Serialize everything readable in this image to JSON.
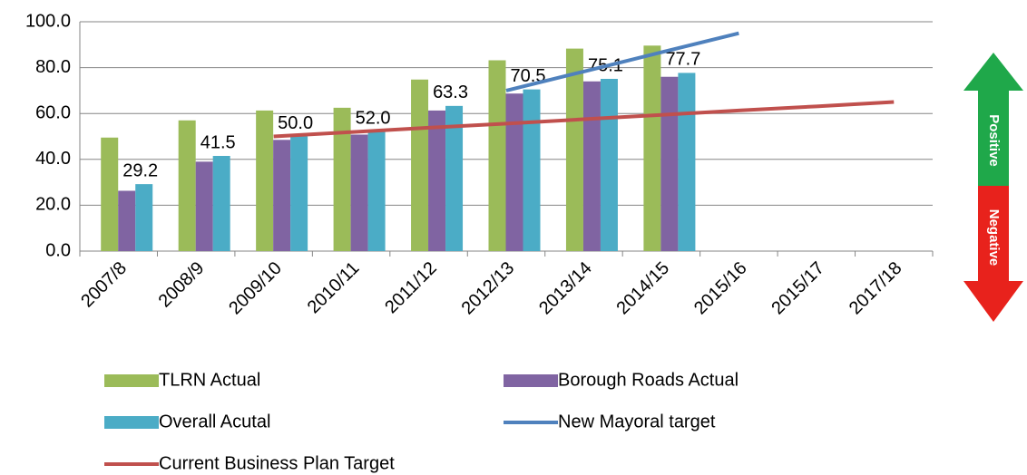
{
  "chart_data": {
    "type": "bar",
    "categories": [
      "2007/8",
      "2008/9",
      "2009/10",
      "2010/11",
      "2011/12",
      "2012/13",
      "2013/14",
      "2014/15",
      "2015/16",
      "2015/17",
      "2017/18"
    ],
    "series": [
      {
        "name": "TLRN Actual",
        "type": "bar",
        "color": "#9bbb59",
        "values": [
          49.5,
          57,
          61.3,
          62.5,
          74.8,
          83.2,
          88.3,
          89.6,
          null,
          null,
          null
        ]
      },
      {
        "name": "Borough Roads Actual",
        "type": "bar",
        "color": "#8064a2",
        "values": [
          26.3,
          39,
          48.5,
          50.8,
          61.3,
          68.7,
          74,
          76,
          null,
          null,
          null
        ]
      },
      {
        "name": "Overall Acutal",
        "type": "bar",
        "color": "#4bacc6",
        "values": [
          29.2,
          41.5,
          50.0,
          52.0,
          63.3,
          70.5,
          75.1,
          77.7,
          null,
          null,
          null
        ],
        "value_labels": [
          "29.2",
          "41.5",
          "50.0",
          "52.0",
          "63.3",
          "70.5",
          "75.1",
          "77.7",
          null,
          null,
          null
        ]
      },
      {
        "name": "New Mayoral target",
        "type": "line",
        "color": "#4f81bd",
        "values": [
          null,
          null,
          null,
          null,
          null,
          70,
          78.3,
          86.7,
          95,
          null,
          null
        ]
      },
      {
        "name": "Current Business Plan Target",
        "type": "line",
        "color": "#c0504d",
        "values": [
          null,
          null,
          50,
          51.9,
          53.8,
          55.6,
          57.5,
          59.4,
          61.3,
          63.1,
          65
        ]
      }
    ],
    "ylim": [
      0,
      100
    ],
    "yticks": [
      {
        "value": 0,
        "label": "0.0"
      },
      {
        "value": 20,
        "label": "20.0"
      },
      {
        "value": 40,
        "label": "40.0"
      },
      {
        "value": 60,
        "label": "60.0"
      },
      {
        "value": 80,
        "label": "80.0"
      },
      {
        "value": 100,
        "label": "100.0"
      }
    ],
    "grid": true,
    "legend": "bottom"
  },
  "indicator": {
    "positive": "Positive",
    "negative": "Negative"
  }
}
